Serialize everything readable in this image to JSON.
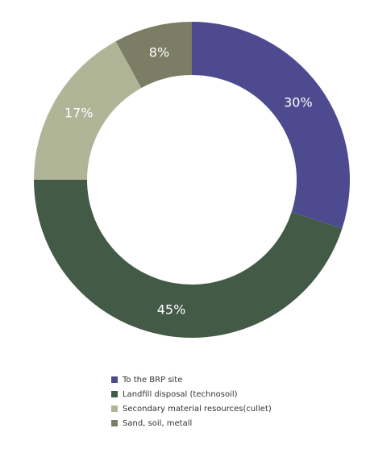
{
  "chart_data": {
    "type": "donut",
    "title": "",
    "legend_position": "bottom",
    "series": [
      {
        "name": "To the BRP site",
        "value": 30,
        "label": "30%",
        "color": "#4e4a8f"
      },
      {
        "name": "Landfill disposal (technosoil)",
        "value": 45,
        "label": "45%",
        "color": "#435a47"
      },
      {
        "name": "Secondary material resources(cullet)",
        "value": 17,
        "label": "17%",
        "color": "#b1b598"
      },
      {
        "name": "Sand, soil, metall",
        "value": 8,
        "label": "8%",
        "color": "#7b7d65"
      }
    ]
  }
}
